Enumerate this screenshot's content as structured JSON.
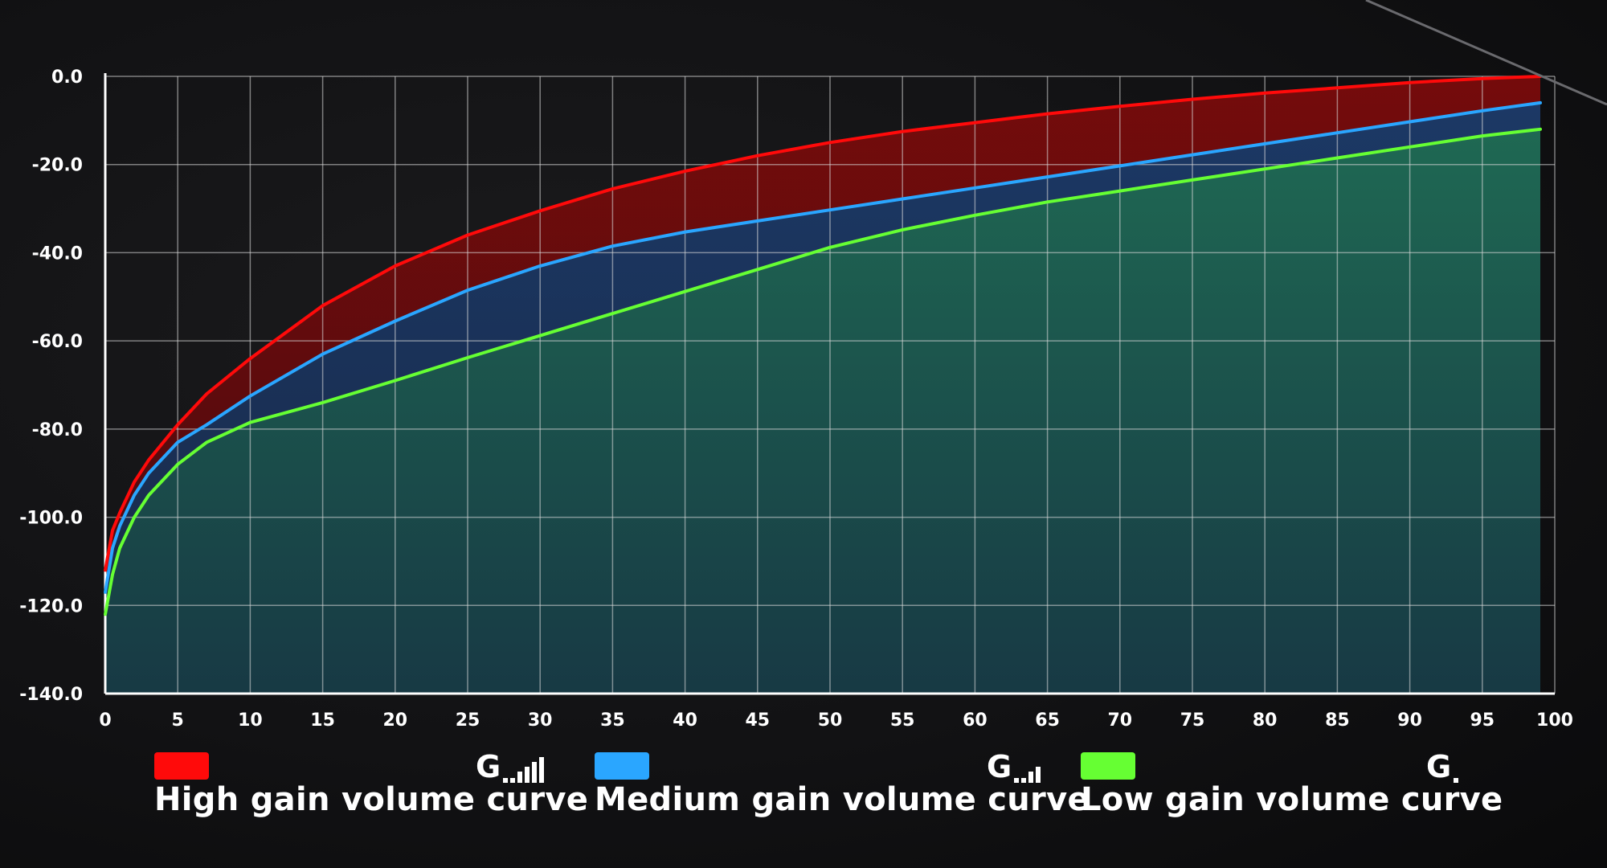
{
  "chart_data": {
    "type": "area",
    "title": "",
    "xlabel": "",
    "ylabel": "",
    "xlim": [
      0,
      100
    ],
    "ylim": [
      -140,
      0
    ],
    "x_ticks": [
      "0",
      "5",
      "10",
      "15",
      "20",
      "25",
      "30",
      "35",
      "40",
      "45",
      "50",
      "55",
      "60",
      "65",
      "70",
      "75",
      "80",
      "85",
      "90",
      "95",
      "100"
    ],
    "y_ticks": [
      "0.0",
      "-20.0",
      "-40.0",
      "-60.0",
      "-80.0",
      "-100.0",
      "-120.0",
      "-140.0"
    ],
    "grid": true,
    "legend_position": "bottom",
    "series": [
      {
        "name": "High gain volume curve",
        "color": "#ff0a0a",
        "fill": "#6a0c0c",
        "x": [
          0,
          0.5,
          1,
          2,
          3,
          5,
          7,
          10,
          15,
          20,
          25,
          30,
          35,
          40,
          45,
          50,
          55,
          60,
          65,
          70,
          75,
          80,
          85,
          90,
          95,
          99
        ],
        "y": [
          -112,
          -103,
          -99,
          -92,
          -87,
          -79,
          -72,
          -64,
          -52,
          -43,
          -36,
          -30.5,
          -25.5,
          -21.5,
          -18,
          -15,
          -12.5,
          -10.5,
          -8.5,
          -6.8,
          -5.2,
          -3.8,
          -2.6,
          -1.4,
          -0.5,
          0
        ]
      },
      {
        "name": "Medium gain volume curve",
        "color": "#2aa6ff",
        "fill": "#15335a",
        "x": [
          0,
          0.5,
          1,
          2,
          3,
          5,
          7,
          10,
          15,
          20,
          25,
          30,
          35,
          40,
          45,
          50,
          55,
          60,
          65,
          70,
          75,
          80,
          85,
          90,
          95,
          99
        ],
        "y": [
          -117,
          -107,
          -102,
          -95,
          -90,
          -83,
          -79,
          -72.5,
          -63,
          -55.5,
          -48.5,
          -43,
          -38.5,
          -35.3,
          -32.8,
          -30.3,
          -27.8,
          -25.3,
          -22.8,
          -20.3,
          -17.8,
          -15.3,
          -12.8,
          -10.3,
          -7.8,
          -6
        ]
      },
      {
        "name": "Low gain volume curve",
        "color": "#66ff33",
        "fill": "#1a5a4c",
        "x": [
          0,
          0.5,
          1,
          2,
          3,
          5,
          7,
          10,
          15,
          20,
          25,
          30,
          35,
          40,
          45,
          50,
          55,
          60,
          65,
          70,
          75,
          80,
          85,
          90,
          95,
          99
        ],
        "y": [
          -122,
          -113,
          -107,
          -100,
          -95,
          -88,
          -83,
          -78.5,
          -74,
          -69,
          -63.8,
          -58.8,
          -53.8,
          -48.8,
          -43.8,
          -38.8,
          -34.8,
          -31.5,
          -28.5,
          -26,
          -23.5,
          -21,
          -18.5,
          -16,
          -13.5,
          -12
        ]
      }
    ]
  },
  "legend": {
    "items": [
      {
        "label": "High gain volume curve",
        "gain_glyph": "G",
        "bars": 4,
        "color": "#ff0a0a"
      },
      {
        "label": "Medium gain volume curve",
        "gain_glyph": "G",
        "bars": 2,
        "color": "#2aa6ff"
      },
      {
        "label": "Low gain volume curve",
        "gain_glyph": "G",
        "bars": 0,
        "color": "#66ff33"
      }
    ]
  }
}
